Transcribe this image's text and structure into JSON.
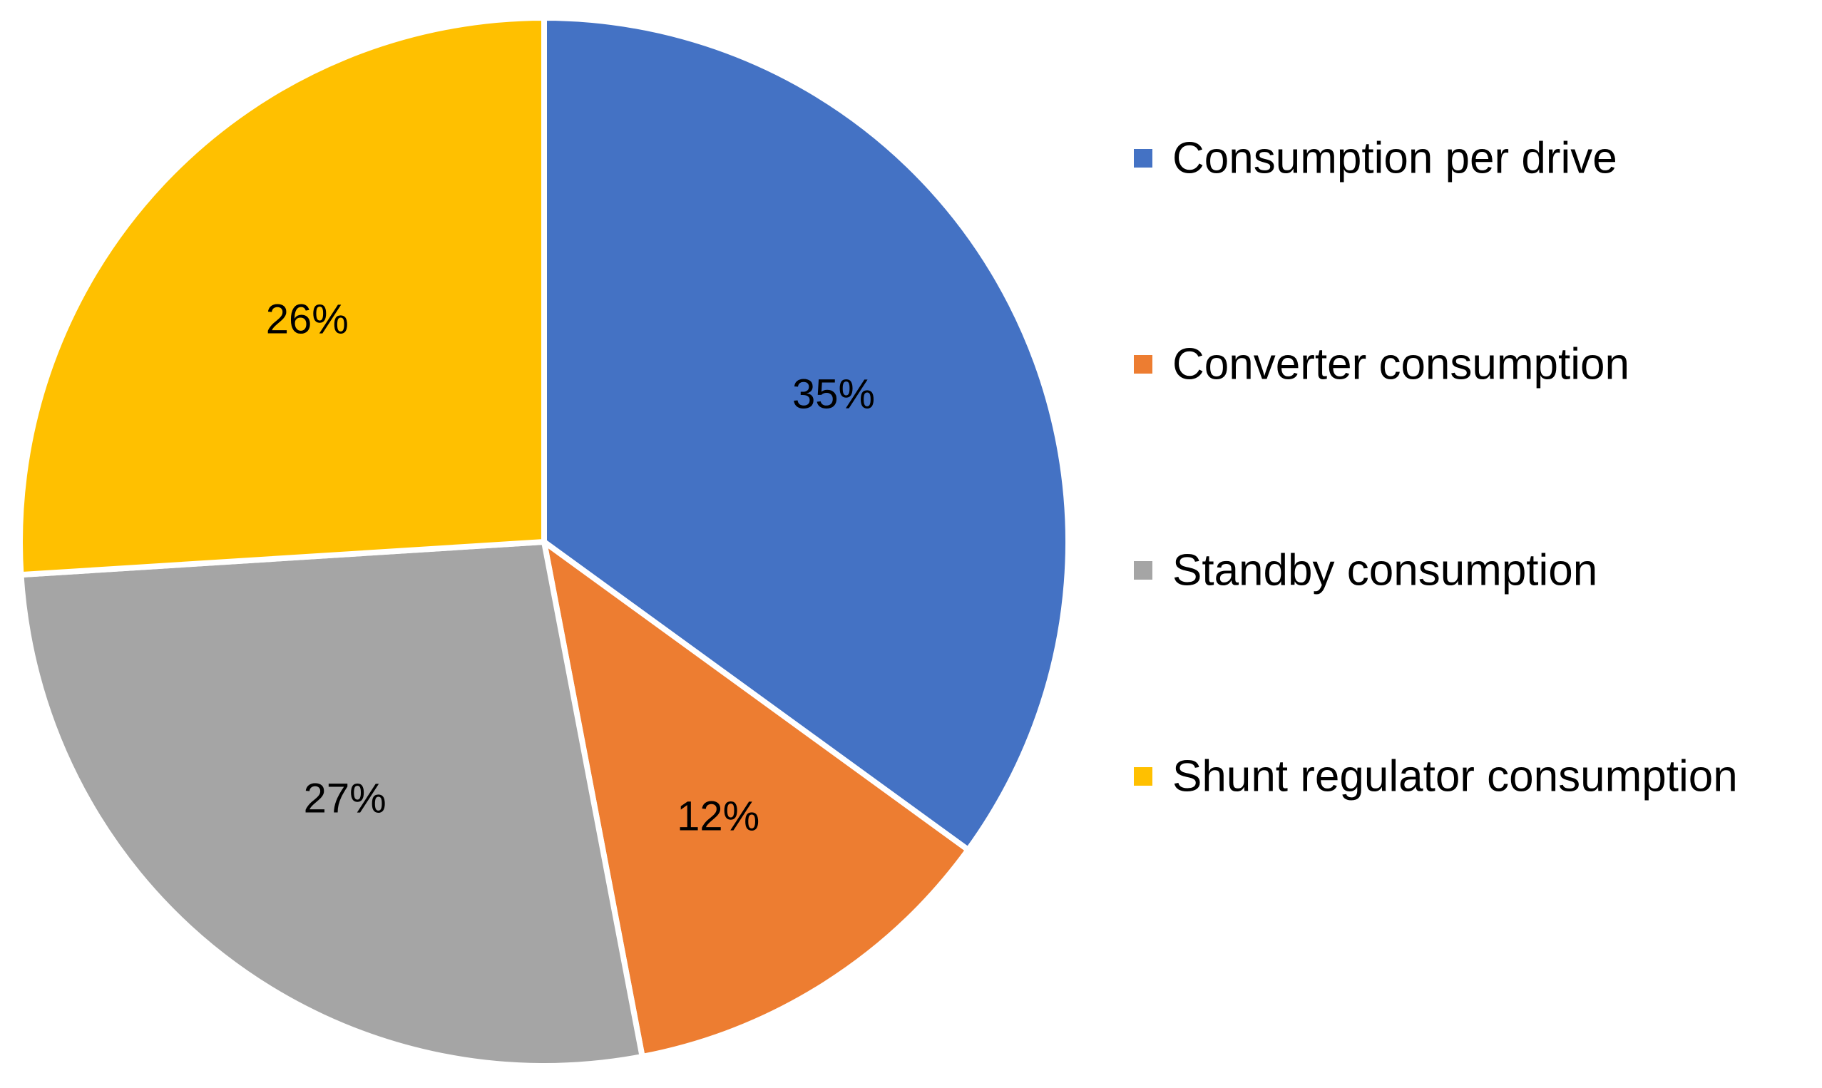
{
  "chart_data": {
    "type": "pie",
    "title": "",
    "categories": [
      "Consumption per drive",
      "Converter consumption",
      "Standby consumption",
      "Shunt regulator consumption"
    ],
    "values": [
      35,
      12,
      27,
      26
    ],
    "labels": [
      "35%",
      "12%",
      "27%",
      "26%"
    ],
    "colors": [
      "#4472C4",
      "#ED7D31",
      "#A5A5A5",
      "#FFC000"
    ],
    "start_angle": "12 o'clock",
    "direction": "clockwise",
    "legend": {
      "position": "right",
      "entries": [
        "Consumption per drive",
        "Converter consumption",
        "Standby consumption",
        "Shunt regulator consumption"
      ]
    }
  }
}
